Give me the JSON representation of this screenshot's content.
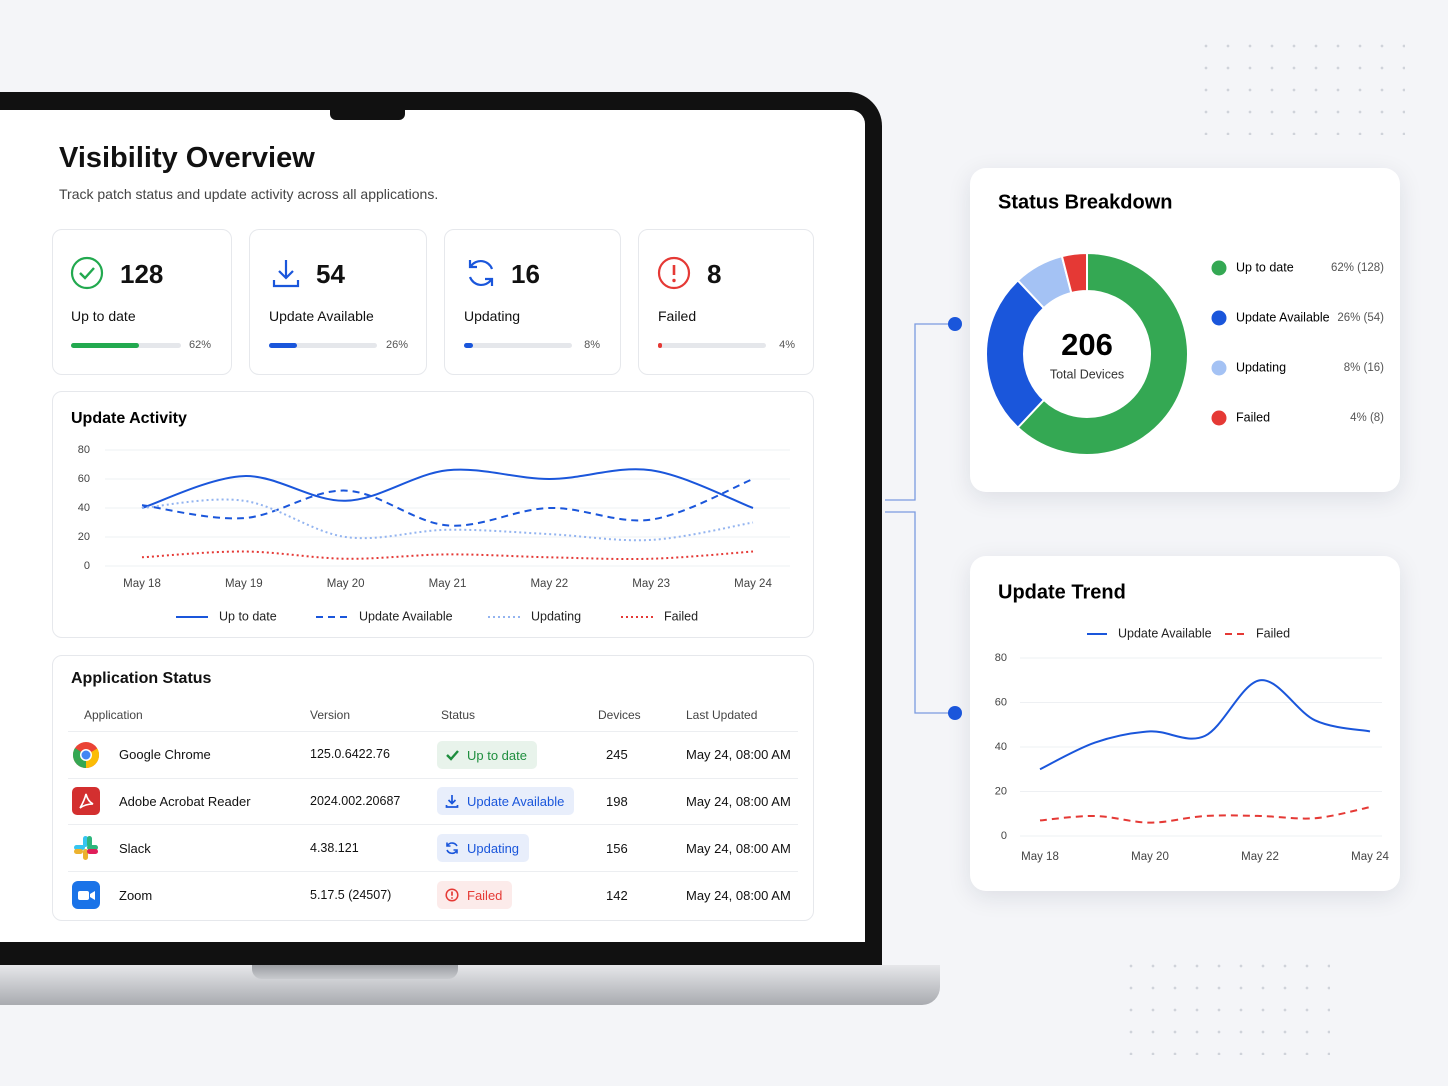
{
  "header": {
    "title": "Visibility Overview",
    "subtitle": "Track patch status and update activity across all applications."
  },
  "stats": {
    "items": [
      {
        "value": 128,
        "label": "Up to date",
        "percent": 62,
        "percent_label": "62%",
        "color": "#22a94f"
      },
      {
        "value": 54,
        "label": "Update Available",
        "percent": 26,
        "percent_label": "26%",
        "color": "#1a56db"
      },
      {
        "value": 16,
        "label": "Updating",
        "percent": 8,
        "percent_label": "8%",
        "color": "#1a56db"
      },
      {
        "value": 8,
        "label": "Failed",
        "percent": 4,
        "percent_label": "4%",
        "color": "#e53935"
      }
    ]
  },
  "chart_data": [
    {
      "type": "line",
      "title": "Update Activity",
      "categories": [
        "May 18",
        "May 19",
        "May 20",
        "May 21",
        "May 22",
        "May 23",
        "May 24"
      ],
      "ylim": [
        0,
        80
      ],
      "yticks": [
        0,
        20,
        40,
        60,
        80
      ],
      "grid": true,
      "series": [
        {
          "name": "Up to date",
          "color": "#1a56db",
          "style": "solid",
          "values": [
            40,
            62,
            45,
            66,
            60,
            66,
            40
          ]
        },
        {
          "name": "Update Available",
          "color": "#1a56db",
          "style": "dashed",
          "values": [
            42,
            33,
            52,
            28,
            40,
            32,
            60
          ]
        },
        {
          "name": "Updating",
          "color": "#93b4f0",
          "style": "dotted",
          "values": [
            40,
            45,
            20,
            25,
            22,
            18,
            30
          ]
        },
        {
          "name": "Failed",
          "color": "#e53935",
          "style": "dotted",
          "values": [
            6,
            10,
            5,
            8,
            6,
            5,
            10
          ]
        }
      ]
    },
    {
      "type": "donut",
      "title": "Status Breakdown",
      "center_value": 206,
      "center_label": "Total Devices",
      "categories": [
        "Up to date",
        "Update Available",
        "Updating",
        "Failed"
      ],
      "values": [
        62,
        26,
        8,
        4
      ],
      "value_labels": [
        "62% (128)",
        "26% (54)",
        "8% (16)",
        "4% (8)"
      ],
      "colors": [
        "#34a853",
        "#1a56db",
        "#a4c2f4",
        "#e53935"
      ]
    },
    {
      "type": "line",
      "title": "Update Trend",
      "categories": [
        "May 18",
        null,
        "May 20",
        null,
        "May 22",
        null,
        "May 24"
      ],
      "ylim": [
        0,
        80
      ],
      "yticks": [
        0,
        20,
        40,
        60,
        80
      ],
      "grid": true,
      "series": [
        {
          "name": "Update Available",
          "color": "#1a56db",
          "style": "solid",
          "values": [
            30,
            42,
            47,
            45,
            70,
            52,
            47
          ]
        },
        {
          "name": "Failed",
          "color": "#e53935",
          "style": "dashed",
          "values": [
            7,
            9,
            6,
            9,
            9,
            8,
            13
          ]
        }
      ]
    }
  ],
  "table": {
    "title": "Application Status",
    "columns": [
      "Application",
      "Version",
      "Status",
      "Devices",
      "Last Updated"
    ],
    "rows": [
      {
        "name": "Google Chrome",
        "version": "125.0.6422.76",
        "status": "Up to date",
        "devices": 245,
        "updated": "May 24, 08:00 AM",
        "color": "#1e8e3e"
      },
      {
        "name": "Adobe Acrobat Reader",
        "version": "2024.002.20687",
        "status": "Update Available",
        "devices": 198,
        "updated": "May 24, 08:00 AM",
        "color": "#1a56db"
      },
      {
        "name": "Slack",
        "version": "4.38.121",
        "status": "Updating",
        "devices": 156,
        "updated": "May 24, 08:00 AM",
        "color": "#1a56db"
      },
      {
        "name": "Zoom",
        "version": "5.17.5 (24507)",
        "status": "Failed",
        "devices": 142,
        "updated": "May 24, 08:00 AM",
        "color": "#e53935"
      }
    ]
  }
}
